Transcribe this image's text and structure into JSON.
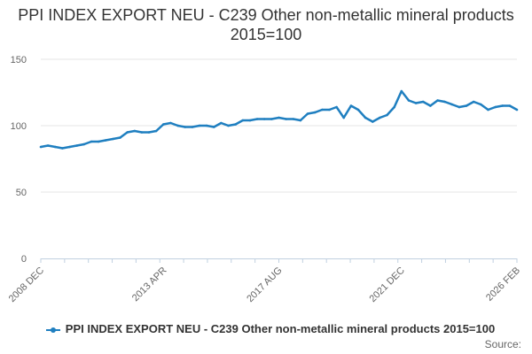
{
  "chart_data": {
    "type": "line",
    "title": "PPI INDEX EXPORT NEU - C239 Other non-metallic mineral products 2015=100",
    "xlabel": "",
    "ylabel": "",
    "ylim": [
      0,
      150
    ],
    "yticks": [
      0,
      50,
      100,
      150
    ],
    "x_tick_labels": [
      "2008 DEC",
      "2013 APR",
      "2017 AUG",
      "2021 DEC",
      "2026 FEB"
    ],
    "grid": "horizontal",
    "legend_position": "bottom",
    "series": [
      {
        "name": "PPI INDEX EXPORT NEU - C239 Other non-metallic mineral products 2015=100",
        "color": "#1f7fc0",
        "x": [
          "2008 DEC",
          "2009 MAR",
          "2009 JUN",
          "2009 SEP",
          "2009 DEC",
          "2010 MAR",
          "2010 JUN",
          "2010 SEP",
          "2010 DEC",
          "2011 MAR",
          "2011 JUN",
          "2011 SEP",
          "2011 DEC",
          "2012 MAR",
          "2012 JUN",
          "2012 SEP",
          "2012 DEC",
          "2013 APR",
          "2013 JUL",
          "2013 OCT",
          "2014 JAN",
          "2014 APR",
          "2014 JUL",
          "2014 OCT",
          "2015 JAN",
          "2015 APR",
          "2015 JUL",
          "2015 OCT",
          "2016 JAN",
          "2016 APR",
          "2016 JUL",
          "2016 OCT",
          "2017 JAN",
          "2017 AUG",
          "2017 NOV",
          "2018 FEB",
          "2018 MAY",
          "2018 AUG",
          "2018 NOV",
          "2019 FEB",
          "2019 MAY",
          "2019 AUG",
          "2019 NOV",
          "2020 FEB",
          "2020 MAY",
          "2020 AUG",
          "2020 NOV",
          "2021 MAR",
          "2021 JUL",
          "2021 OCT",
          "2021 DEC",
          "2022 MAR",
          "2022 JUN",
          "2022 SEP",
          "2022 DEC",
          "2023 MAR",
          "2023 JUN",
          "2023 SEP",
          "2023 DEC",
          "2024 MAR",
          "2024 JUN",
          "2024 SEP",
          "2024 DEC",
          "2025 MAR",
          "2025 JUN",
          "2025 SEP",
          "2026 FEB"
        ],
        "values": [
          84,
          85,
          84,
          83,
          84,
          85,
          86,
          88,
          88,
          89,
          90,
          91,
          95,
          96,
          95,
          95,
          96,
          101,
          102,
          100,
          99,
          99,
          100,
          100,
          99,
          102,
          100,
          101,
          104,
          104,
          105,
          105,
          105,
          106,
          105,
          105,
          104,
          109,
          110,
          112,
          112,
          114,
          106,
          115,
          112,
          106,
          103,
          106,
          108,
          114,
          126,
          119,
          117,
          118,
          115,
          119,
          118,
          116,
          114,
          115,
          118,
          116,
          112,
          114,
          115,
          115,
          112
        ]
      }
    ]
  },
  "source_label": "Source:"
}
